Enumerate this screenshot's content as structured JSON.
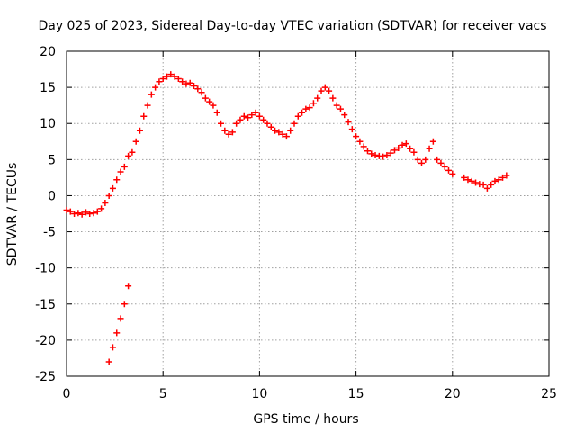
{
  "chart_data": {
    "type": "scatter",
    "title": "Day 025 of 2023, Sidereal Day-to-day VTEC variation (SDTVAR) for receiver vacs",
    "xlabel": "GPS time / hours",
    "ylabel": "SDTVAR / TECUs",
    "xlim": [
      0,
      25
    ],
    "ylim": [
      -25,
      20
    ],
    "xticks": [
      0,
      5,
      10,
      15,
      20,
      25
    ],
    "yticks": [
      -25,
      -20,
      -15,
      -10,
      -5,
      0,
      5,
      10,
      15,
      20
    ],
    "grid": true,
    "marker": "plus",
    "series": [
      {
        "name": "SDTVAR",
        "color": "#ff0000",
        "x": [
          0.0,
          0.2,
          0.4,
          0.6,
          0.8,
          1.0,
          1.2,
          1.4,
          1.6,
          1.8,
          2.0,
          2.2,
          2.4,
          2.6,
          2.8,
          3.0,
          3.2,
          3.4,
          3.6,
          3.8,
          4.0,
          4.2,
          4.4,
          4.6,
          4.8,
          5.0,
          5.2,
          5.4,
          5.6,
          5.8,
          6.0,
          6.2,
          6.4,
          6.6,
          6.8,
          7.0,
          7.2,
          7.4,
          7.6,
          7.8,
          8.0,
          8.2,
          8.4,
          8.6,
          8.8,
          9.0,
          9.2,
          9.4,
          9.6,
          9.8,
          10.0,
          10.2,
          10.4,
          10.6,
          10.8,
          11.0,
          11.2,
          11.4,
          11.6,
          11.8,
          12.0,
          12.2,
          12.4,
          12.6,
          12.8,
          13.0,
          13.2,
          13.4,
          13.6,
          13.8,
          14.0,
          14.2,
          14.4,
          14.6,
          14.8,
          15.0,
          15.2,
          15.4,
          15.6,
          15.8,
          16.0,
          16.2,
          16.4,
          16.6,
          16.8,
          17.0,
          17.2,
          17.4,
          17.6,
          17.8,
          18.0,
          18.2,
          18.4,
          18.6,
          18.8,
          19.0,
          19.2,
          19.4,
          19.6,
          19.8,
          20.0,
          20.6,
          20.8,
          21.0,
          21.2,
          21.4,
          21.6,
          21.8,
          22.0,
          22.2,
          22.4,
          22.6,
          22.8,
          2.2,
          2.4,
          2.6,
          2.8,
          3.0,
          3.2
        ],
        "y": [
          -2.0,
          -2.2,
          -2.5,
          -2.4,
          -2.6,
          -2.3,
          -2.5,
          -2.4,
          -2.2,
          -1.8,
          -1.0,
          0.0,
          1.0,
          2.2,
          3.3,
          4.0,
          5.5,
          6.0,
          7.5,
          9.0,
          11.0,
          12.5,
          14.0,
          15.0,
          15.8,
          16.2,
          16.5,
          16.8,
          16.5,
          16.2,
          15.8,
          15.5,
          15.6,
          15.2,
          14.8,
          14.3,
          13.5,
          13.0,
          12.5,
          11.5,
          10.0,
          9.0,
          8.5,
          8.8,
          10.0,
          10.5,
          11.0,
          10.8,
          11.2,
          11.5,
          11.0,
          10.5,
          10.0,
          9.5,
          9.0,
          8.8,
          8.5,
          8.2,
          9.0,
          10.0,
          11.0,
          11.5,
          12.0,
          12.2,
          12.8,
          13.5,
          14.5,
          15.0,
          14.5,
          13.5,
          12.5,
          12.0,
          11.2,
          10.2,
          9.2,
          8.2,
          7.5,
          6.8,
          6.2,
          5.8,
          5.6,
          5.5,
          5.4,
          5.6,
          5.9,
          6.3,
          6.6,
          7.0,
          7.2,
          6.5,
          6.0,
          5.0,
          4.5,
          5.0,
          6.5,
          7.5,
          5.0,
          4.5,
          4.0,
          3.5,
          3.0,
          2.5,
          2.2,
          2.0,
          1.8,
          1.6,
          1.5,
          1.0,
          1.5,
          2.0,
          2.2,
          2.5,
          2.8,
          -23.0,
          -21.0,
          -19.0,
          -17.0,
          -15.0,
          -12.5
        ]
      }
    ]
  }
}
